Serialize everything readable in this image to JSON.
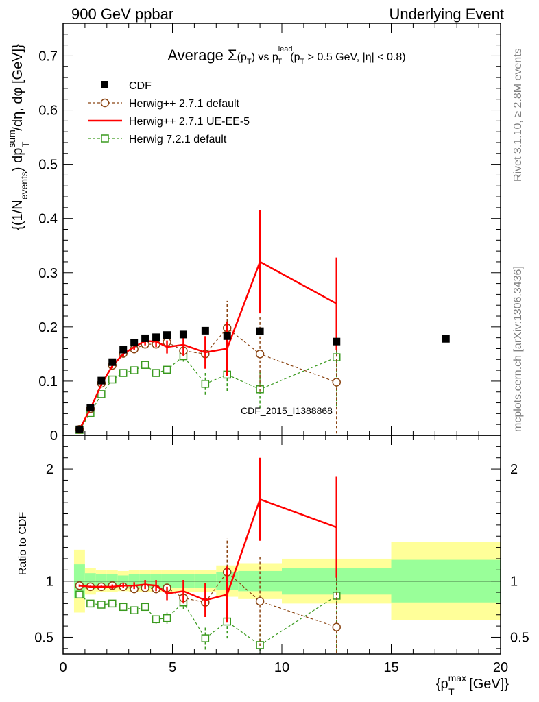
{
  "header": {
    "left": "900 GeV ppbar",
    "right": "Underlying Event"
  },
  "side_labels": {
    "rivet": "Rivet 3.1.10, ≥ 2.8M events",
    "mcplots": "mcplots.cern.ch [arXiv:1306.3436]"
  },
  "watermark": "CDF_2015_I1388868",
  "chart_data": [
    {
      "type": "line",
      "title": "Average Σ(p_T) vs p_T^lead (p_T > 0.5 GeV, |η| < 0.8)",
      "title_parts": {
        "prefix": "Average ",
        "sigma": "Σ",
        "open": "(p",
        "sub_t": "T",
        "close": ") vs p",
        "sup_lead": "lead",
        "sub_t2": "T",
        "cut_open": "(p",
        "sub_t3": "T",
        "cut_rest": " > 0.5 GeV, |η| < 0.8)"
      },
      "ylabel": "{(1/N_events) dp_T^sum/dη, dφ [GeV]}",
      "ylabel_parts": {
        "a": "{(1/N",
        "sub_events": "events",
        "b": ") dp",
        "sup_sum": "sum",
        "sub_t": "T",
        "c": "/dη, dφ [GeV]}"
      },
      "xlim": [
        0,
        20
      ],
      "ylim": [
        0,
        0.76
      ],
      "yticks": [
        "0",
        "0.1",
        "0.2",
        "0.3",
        "0.4",
        "0.5",
        "0.6",
        "0.7"
      ],
      "legend_position": "top-left",
      "series": [
        {
          "name": "CDF",
          "color": "#000000",
          "marker": "square-filled",
          "x": [
            0.75,
            1.25,
            1.75,
            2.25,
            2.75,
            3.25,
            3.75,
            4.25,
            4.75,
            5.5,
            6.5,
            7.5,
            9.0,
            12.5,
            17.5
          ],
          "y": [
            0.011,
            0.051,
            0.101,
            0.135,
            0.158,
            0.171,
            0.179,
            0.181,
            0.185,
            0.186,
            0.193,
            0.183,
            0.192,
            0.173,
            0.178
          ]
        },
        {
          "name": "Herwig++ 2.7.1 default",
          "color": "#8b4513",
          "marker": "circle-open",
          "line": "dashed",
          "x": [
            0.75,
            1.25,
            1.75,
            2.25,
            2.75,
            3.25,
            3.75,
            4.25,
            4.75,
            5.5,
            6.5,
            7.5,
            9.0,
            12.5
          ],
          "y": [
            0.011,
            0.049,
            0.096,
            0.129,
            0.151,
            0.159,
            0.168,
            0.168,
            0.172,
            0.156,
            0.15,
            0.198,
            0.15,
            0.098
          ],
          "err": [
            0.001,
            0.002,
            0.003,
            0.004,
            0.004,
            0.005,
            0.006,
            0.007,
            0.008,
            0.01,
            0.02,
            0.05,
            0.07,
            0.13
          ]
        },
        {
          "name": "Herwig++ 2.7.1 UE-EE-5",
          "color": "#ff0000",
          "marker": "none",
          "line": "solid",
          "x": [
            0.75,
            1.25,
            1.75,
            2.25,
            2.75,
            3.25,
            3.75,
            4.25,
            4.75,
            5.5,
            6.5,
            7.5,
            9.0,
            12.5
          ],
          "y": [
            0.011,
            0.049,
            0.094,
            0.128,
            0.15,
            0.163,
            0.174,
            0.173,
            0.163,
            0.167,
            0.153,
            0.16,
            0.32,
            0.243
          ],
          "err": [
            0.001,
            0.002,
            0.003,
            0.004,
            0.005,
            0.006,
            0.008,
            0.01,
            0.012,
            0.02,
            0.03,
            0.05,
            0.095,
            0.085
          ]
        },
        {
          "name": "Herwig 7.2.1 default",
          "color": "#3a9a1f",
          "marker": "square-open",
          "line": "dashed",
          "x": [
            0.75,
            1.25,
            1.75,
            2.25,
            2.75,
            3.25,
            3.75,
            4.25,
            4.75,
            5.5,
            6.5,
            7.5,
            9.0,
            12.5
          ],
          "y": [
            0.01,
            0.041,
            0.076,
            0.103,
            0.115,
            0.12,
            0.13,
            0.115,
            0.121,
            0.146,
            0.095,
            0.112,
            0.085,
            0.144
          ],
          "err": [
            0.001,
            0.002,
            0.003,
            0.004,
            0.004,
            0.005,
            0.006,
            0.007,
            0.008,
            0.01,
            0.02,
            0.03,
            0.035,
            0.09
          ]
        }
      ]
    },
    {
      "type": "line",
      "ylabel": "Ratio to CDF",
      "xlabel": "{p_T^max [GeV]}",
      "xlabel_parts": {
        "a": "{p",
        "sup_max": "max",
        "sub_t": "T",
        "b": " [GeV]}"
      },
      "xlim": [
        0,
        20
      ],
      "ylim": [
        0.35,
        2.3
      ],
      "xticks": [
        "0",
        "5",
        "10",
        "15",
        "20"
      ],
      "yticks": [
        "0.5",
        "1",
        "2"
      ],
      "reference_line": 1,
      "bands": {
        "edges": [
          0.5,
          1.0,
          1.5,
          2.0,
          2.5,
          3.0,
          3.5,
          4.0,
          4.5,
          5.0,
          6.0,
          7.0,
          8.0,
          10.0,
          15.0,
          20.0
        ],
        "green_half_width": [
          0.15,
          0.07,
          0.06,
          0.06,
          0.05,
          0.06,
          0.06,
          0.06,
          0.06,
          0.06,
          0.06,
          0.08,
          0.09,
          0.12,
          0.19
        ],
        "yellow_half_width": [
          0.28,
          0.12,
          0.1,
          0.1,
          0.09,
          0.1,
          0.1,
          0.1,
          0.1,
          0.1,
          0.1,
          0.14,
          0.16,
          0.2,
          0.35
        ],
        "green_color": "#99ff99",
        "yellow_color": "#ffff99"
      },
      "series": [
        {
          "name": "Herwig++ 2.7.1 default",
          "color": "#8b4513",
          "marker": "circle-open",
          "line": "dashed",
          "x": [
            0.75,
            1.25,
            1.75,
            2.25,
            2.75,
            3.25,
            3.75,
            4.25,
            4.75,
            5.5,
            6.5,
            7.5,
            9.0,
            12.5
          ],
          "y": [
            0.96,
            0.95,
            0.95,
            0.96,
            0.95,
            0.93,
            0.94,
            0.93,
            0.94,
            0.85,
            0.81,
            1.08,
            0.82,
            0.59
          ],
          "err": [
            0.01,
            0.01,
            0.01,
            0.02,
            0.02,
            0.02,
            0.03,
            0.04,
            0.04,
            0.05,
            0.1,
            0.3,
            0.4,
            0.7
          ]
        },
        {
          "name": "Herwig++ 2.7.1 UE-EE-5",
          "color": "#ff0000",
          "marker": "none",
          "line": "solid",
          "x": [
            0.75,
            1.25,
            1.75,
            2.25,
            2.75,
            3.25,
            3.75,
            4.25,
            4.75,
            5.5,
            6.5,
            7.5,
            9.0,
            12.5
          ],
          "y": [
            0.96,
            0.95,
            0.95,
            0.95,
            0.96,
            0.96,
            0.97,
            0.96,
            0.89,
            0.91,
            0.83,
            0.88,
            1.73,
            1.48
          ],
          "err": [
            0.01,
            0.01,
            0.01,
            0.02,
            0.02,
            0.03,
            0.04,
            0.05,
            0.06,
            0.1,
            0.15,
            0.25,
            0.37,
            0.45
          ]
        },
        {
          "name": "Herwig 7.2.1 default",
          "color": "#3a9a1f",
          "marker": "square-open",
          "line": "dashed",
          "x": [
            0.75,
            1.25,
            1.75,
            2.25,
            2.75,
            3.25,
            3.75,
            4.25,
            4.75,
            5.5,
            6.5,
            7.5,
            9.0,
            12.5
          ],
          "y": [
            0.88,
            0.8,
            0.79,
            0.8,
            0.77,
            0.74,
            0.77,
            0.66,
            0.67,
            0.81,
            0.49,
            0.64,
            0.43,
            0.87
          ],
          "err": [
            0.01,
            0.01,
            0.01,
            0.02,
            0.02,
            0.02,
            0.03,
            0.04,
            0.05,
            0.06,
            0.1,
            0.15,
            0.18,
            0.5
          ]
        }
      ]
    }
  ]
}
